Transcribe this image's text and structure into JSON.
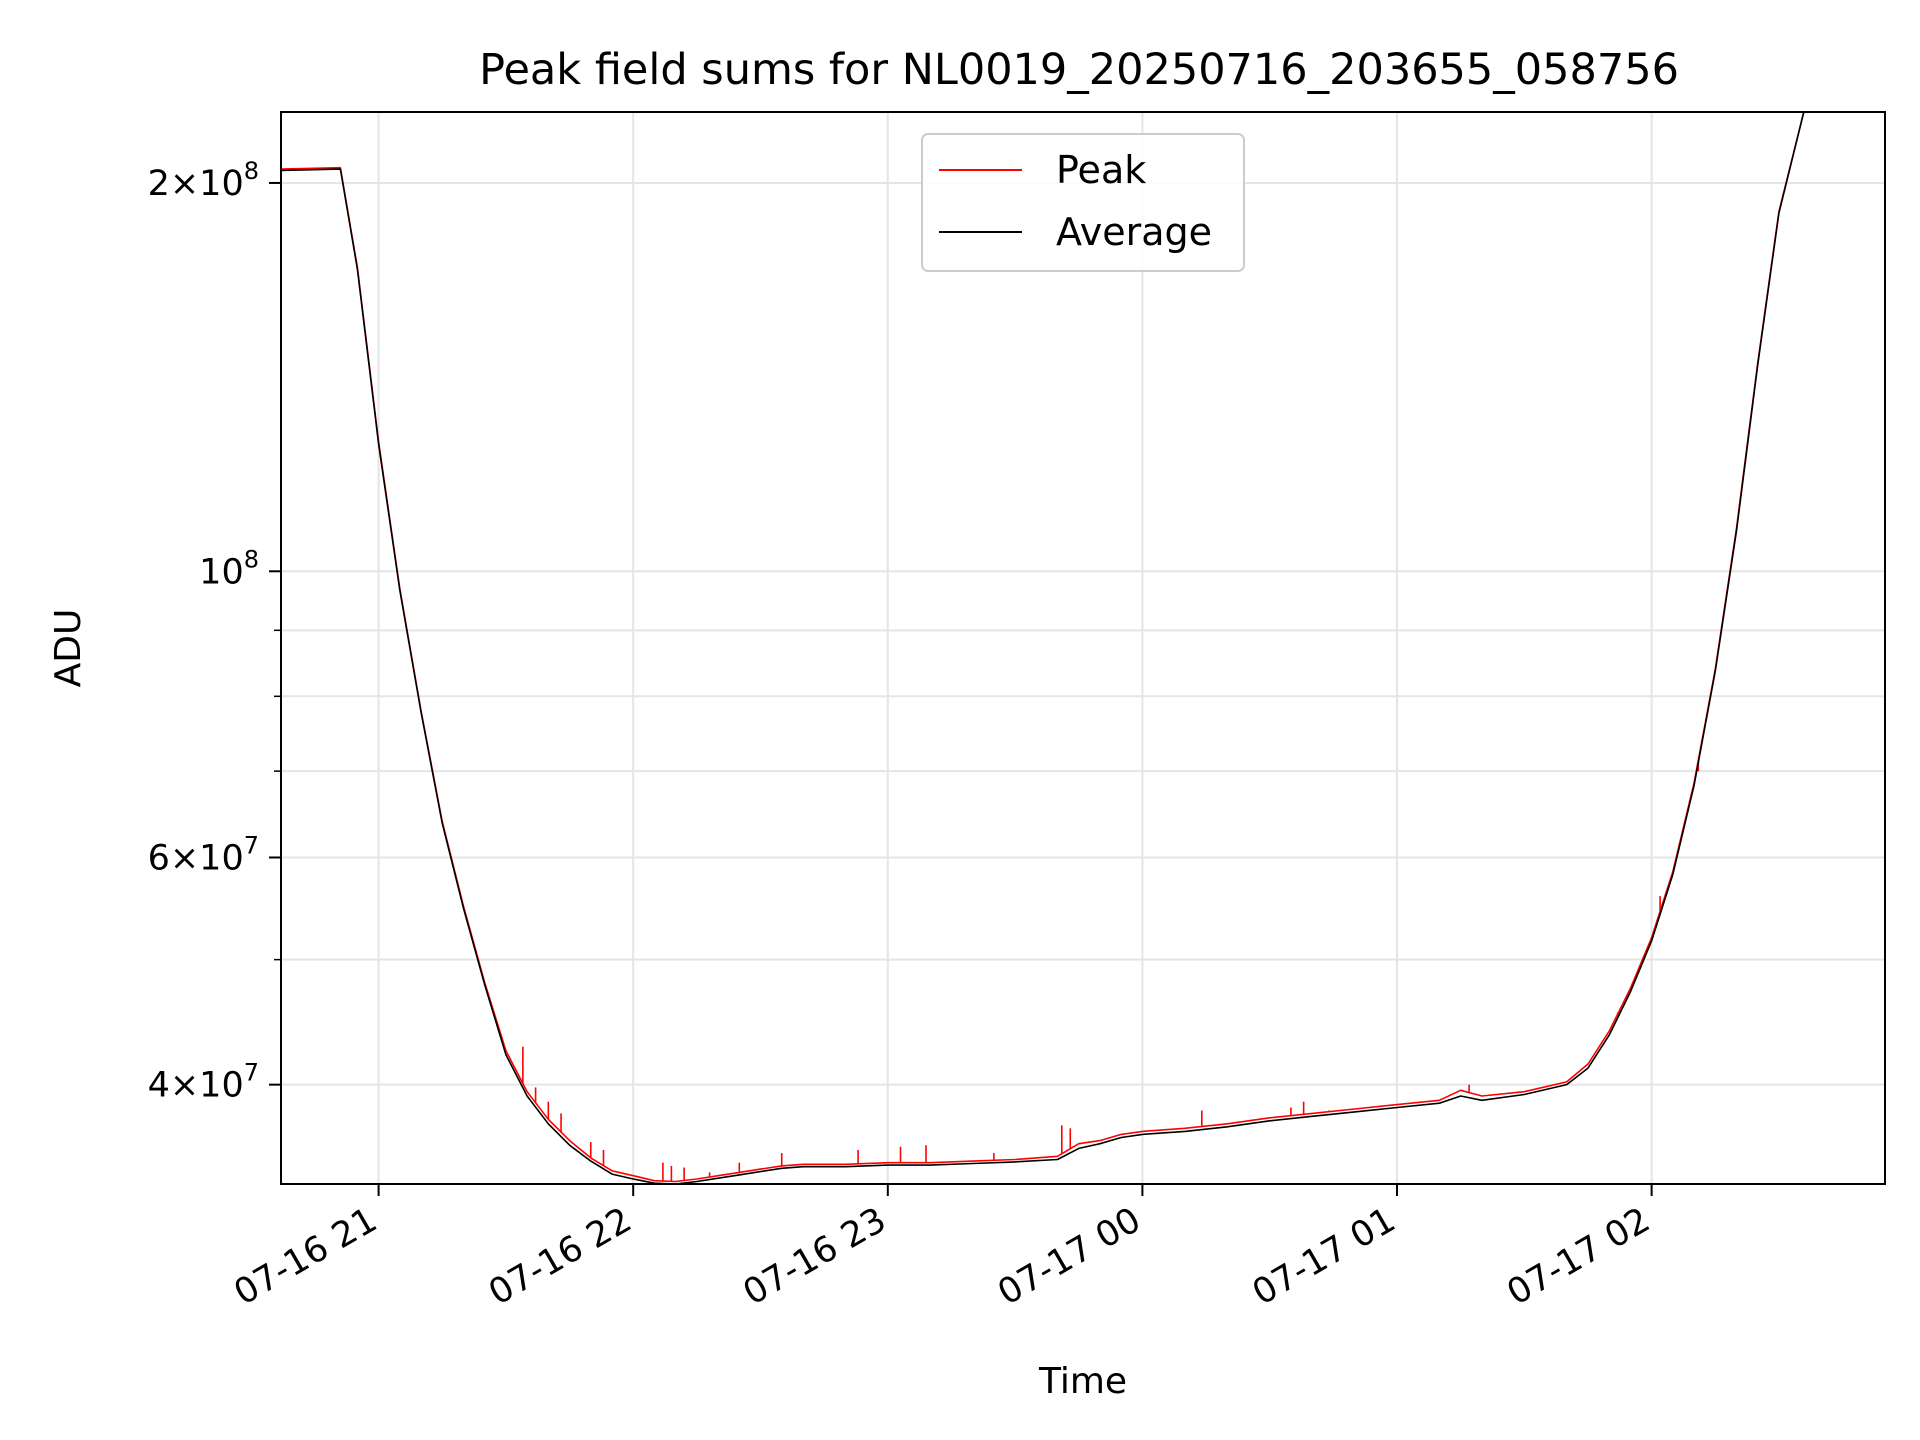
{
  "chart_data": {
    "type": "line",
    "title": "Peak field sums for NL0019_20250716_203655_058756",
    "xlabel": "Time",
    "ylabel": "ADU",
    "y_scale": "log",
    "ylim": [
      33500000,
      227000000
    ],
    "xlim": [
      "2025-07-16 20:37",
      "2025-07-17 02:55"
    ],
    "grid": true,
    "legend_position": "top-center",
    "x_ticks": [
      "2025-07-16 21:00",
      "2025-07-16 22:00",
      "2025-07-16 23:00",
      "2025-07-17 00:00",
      "2025-07-17 01:00",
      "2025-07-17 02:00"
    ],
    "x_tick_labels": [
      "07-16 21",
      "07-16 22",
      "07-16 23",
      "07-17 00",
      "07-17 01",
      "07-17 02"
    ],
    "y_major_ticks": [
      {
        "value": 200000000,
        "mantissa": "2",
        "exponent": "8"
      },
      {
        "value": 100000000,
        "mantissa": "",
        "exponent": "8"
      },
      {
        "value": 60000000,
        "mantissa": "6",
        "exponent": "7"
      },
      {
        "value": 40000000,
        "mantissa": "4",
        "exponent": "7"
      }
    ],
    "y_minor_grid_values": [
      90000000,
      80000000,
      70000000,
      50000000
    ],
    "series": [
      {
        "name": "Peak",
        "color": "#ff0000",
        "points": [
          [
            "2025-07-16 20:37",
            205000000
          ],
          [
            "2025-07-16 20:51",
            205500000
          ],
          [
            "2025-07-16 20:55",
            172000000
          ],
          [
            "2025-07-16 21:00",
            126000000
          ],
          [
            "2025-07-16 21:05",
            97000000
          ],
          [
            "2025-07-16 21:10",
            78000000
          ],
          [
            "2025-07-16 21:15",
            64000000
          ],
          [
            "2025-07-16 21:20",
            55000000
          ],
          [
            "2025-07-16 21:25",
            48000000
          ],
          [
            "2025-07-16 21:30",
            42500000
          ],
          [
            "2025-07-16 21:35",
            39500000
          ],
          [
            "2025-07-16 21:40",
            37600000
          ],
          [
            "2025-07-16 21:45",
            36200000
          ],
          [
            "2025-07-16 21:50",
            35100000
          ],
          [
            "2025-07-16 21:55",
            34300000
          ],
          [
            "2025-07-16 22:00",
            34000000
          ],
          [
            "2025-07-16 22:05",
            33700000
          ],
          [
            "2025-07-16 22:10",
            33650000
          ],
          [
            "2025-07-16 22:15",
            33800000
          ],
          [
            "2025-07-16 22:20",
            34000000
          ],
          [
            "2025-07-16 22:25",
            34200000
          ],
          [
            "2025-07-16 22:30",
            34400000
          ],
          [
            "2025-07-16 22:35",
            34600000
          ],
          [
            "2025-07-16 22:40",
            34700000
          ],
          [
            "2025-07-16 22:50",
            34700000
          ],
          [
            "2025-07-16 23:00",
            34800000
          ],
          [
            "2025-07-16 23:10",
            34800000
          ],
          [
            "2025-07-16 23:20",
            34900000
          ],
          [
            "2025-07-16 23:30",
            35000000
          ],
          [
            "2025-07-16 23:40",
            35200000
          ],
          [
            "2025-07-16 23:45",
            36000000
          ],
          [
            "2025-07-16 23:50",
            36200000
          ],
          [
            "2025-07-16 23:55",
            36600000
          ],
          [
            "2025-07-17 00:00",
            36800000
          ],
          [
            "2025-07-17 00:10",
            37000000
          ],
          [
            "2025-07-17 00:20",
            37300000
          ],
          [
            "2025-07-17 00:30",
            37700000
          ],
          [
            "2025-07-17 00:40",
            38000000
          ],
          [
            "2025-07-17 00:50",
            38300000
          ],
          [
            "2025-07-17 01:00",
            38600000
          ],
          [
            "2025-07-17 01:10",
            38900000
          ],
          [
            "2025-07-17 01:15",
            39600000
          ],
          [
            "2025-07-17 01:20",
            39200000
          ],
          [
            "2025-07-17 01:30",
            39500000
          ],
          [
            "2025-07-17 01:40",
            40200000
          ],
          [
            "2025-07-17 01:45",
            41500000
          ],
          [
            "2025-07-17 01:50",
            44000000
          ],
          [
            "2025-07-17 01:55",
            47500000
          ],
          [
            "2025-07-17 02:00",
            52000000
          ],
          [
            "2025-07-17 02:05",
            58500000
          ],
          [
            "2025-07-17 02:10",
            68500000
          ],
          [
            "2025-07-17 02:15",
            84000000
          ],
          [
            "2025-07-17 02:20",
            108000000
          ],
          [
            "2025-07-17 02:25",
            145000000
          ],
          [
            "2025-07-17 02:30",
            190000000
          ],
          [
            "2025-07-17 02:36",
            228000000
          ]
        ],
        "spikes": [
          [
            "2025-07-16 21:34",
            42800000
          ],
          [
            "2025-07-16 21:37",
            39800000
          ],
          [
            "2025-07-16 21:40",
            38800000
          ],
          [
            "2025-07-16 21:43",
            38000000
          ],
          [
            "2025-07-16 21:50",
            36100000
          ],
          [
            "2025-07-16 21:53",
            35600000
          ],
          [
            "2025-07-16 22:07",
            34800000
          ],
          [
            "2025-07-16 22:09",
            34600000
          ],
          [
            "2025-07-16 22:12",
            34500000
          ],
          [
            "2025-07-16 22:18",
            34200000
          ],
          [
            "2025-07-16 22:25",
            34800000
          ],
          [
            "2025-07-16 22:35",
            35400000
          ],
          [
            "2025-07-16 22:53",
            35600000
          ],
          [
            "2025-07-16 23:03",
            35800000
          ],
          [
            "2025-07-16 23:09",
            35900000
          ],
          [
            "2025-07-16 23:25",
            35400000
          ],
          [
            "2025-07-16 23:41",
            37200000
          ],
          [
            "2025-07-16 23:43",
            37000000
          ],
          [
            "2025-07-17 00:14",
            38200000
          ],
          [
            "2025-07-17 00:35",
            38400000
          ],
          [
            "2025-07-17 00:38",
            38800000
          ],
          [
            "2025-07-17 00:44",
            38200000
          ],
          [
            "2025-07-17 01:17",
            40000000
          ],
          [
            "2025-07-17 01:48",
            43000000
          ],
          [
            "2025-07-17 01:52",
            45500000
          ],
          [
            "2025-07-17 02:02",
            56000000
          ],
          [
            "2025-07-17 02:11",
            70000000
          ]
        ]
      },
      {
        "name": "Average",
        "color": "#000000",
        "points": [
          [
            "2025-07-16 20:37",
            204500000
          ],
          [
            "2025-07-16 20:51",
            205000000
          ],
          [
            "2025-07-16 20:55",
            171500000
          ],
          [
            "2025-07-16 21:00",
            125500000
          ],
          [
            "2025-07-16 21:05",
            96700000
          ],
          [
            "2025-07-16 21:10",
            77800000
          ],
          [
            "2025-07-16 21:15",
            63800000
          ],
          [
            "2025-07-16 21:20",
            54800000
          ],
          [
            "2025-07-16 21:25",
            47800000
          ],
          [
            "2025-07-16 21:30",
            42200000
          ],
          [
            "2025-07-16 21:35",
            39200000
          ],
          [
            "2025-07-16 21:40",
            37300000
          ],
          [
            "2025-07-16 21:45",
            35900000
          ],
          [
            "2025-07-16 21:50",
            34900000
          ],
          [
            "2025-07-16 21:55",
            34100000
          ],
          [
            "2025-07-16 22:00",
            33800000
          ],
          [
            "2025-07-16 22:05",
            33550000
          ],
          [
            "2025-07-16 22:10",
            33500000
          ],
          [
            "2025-07-16 22:15",
            33650000
          ],
          [
            "2025-07-16 22:20",
            33850000
          ],
          [
            "2025-07-16 22:25",
            34050000
          ],
          [
            "2025-07-16 22:30",
            34250000
          ],
          [
            "2025-07-16 22:35",
            34450000
          ],
          [
            "2025-07-16 22:40",
            34550000
          ],
          [
            "2025-07-16 22:50",
            34550000
          ],
          [
            "2025-07-16 23:00",
            34650000
          ],
          [
            "2025-07-16 23:10",
            34650000
          ],
          [
            "2025-07-16 23:20",
            34750000
          ],
          [
            "2025-07-16 23:30",
            34850000
          ],
          [
            "2025-07-16 23:40",
            35000000
          ],
          [
            "2025-07-16 23:45",
            35700000
          ],
          [
            "2025-07-16 23:50",
            36000000
          ],
          [
            "2025-07-16 23:55",
            36400000
          ],
          [
            "2025-07-17 00:00",
            36600000
          ],
          [
            "2025-07-17 00:10",
            36800000
          ],
          [
            "2025-07-17 00:20",
            37100000
          ],
          [
            "2025-07-17 00:30",
            37500000
          ],
          [
            "2025-07-17 00:40",
            37800000
          ],
          [
            "2025-07-17 00:50",
            38100000
          ],
          [
            "2025-07-17 01:00",
            38400000
          ],
          [
            "2025-07-17 01:10",
            38700000
          ],
          [
            "2025-07-17 01:15",
            39200000
          ],
          [
            "2025-07-17 01:20",
            38900000
          ],
          [
            "2025-07-17 01:30",
            39300000
          ],
          [
            "2025-07-17 01:40",
            40000000
          ],
          [
            "2025-07-17 01:45",
            41200000
          ],
          [
            "2025-07-17 01:50",
            43700000
          ],
          [
            "2025-07-17 01:55",
            47200000
          ],
          [
            "2025-07-17 02:00",
            51700000
          ],
          [
            "2025-07-17 02:05",
            58200000
          ],
          [
            "2025-07-17 02:10",
            68200000
          ],
          [
            "2025-07-17 02:15",
            83700000
          ],
          [
            "2025-07-17 02:20",
            107500000
          ],
          [
            "2025-07-17 02:25",
            144500000
          ],
          [
            "2025-07-17 02:30",
            189500000
          ],
          [
            "2025-07-17 02:36",
            228000000
          ]
        ]
      }
    ]
  }
}
